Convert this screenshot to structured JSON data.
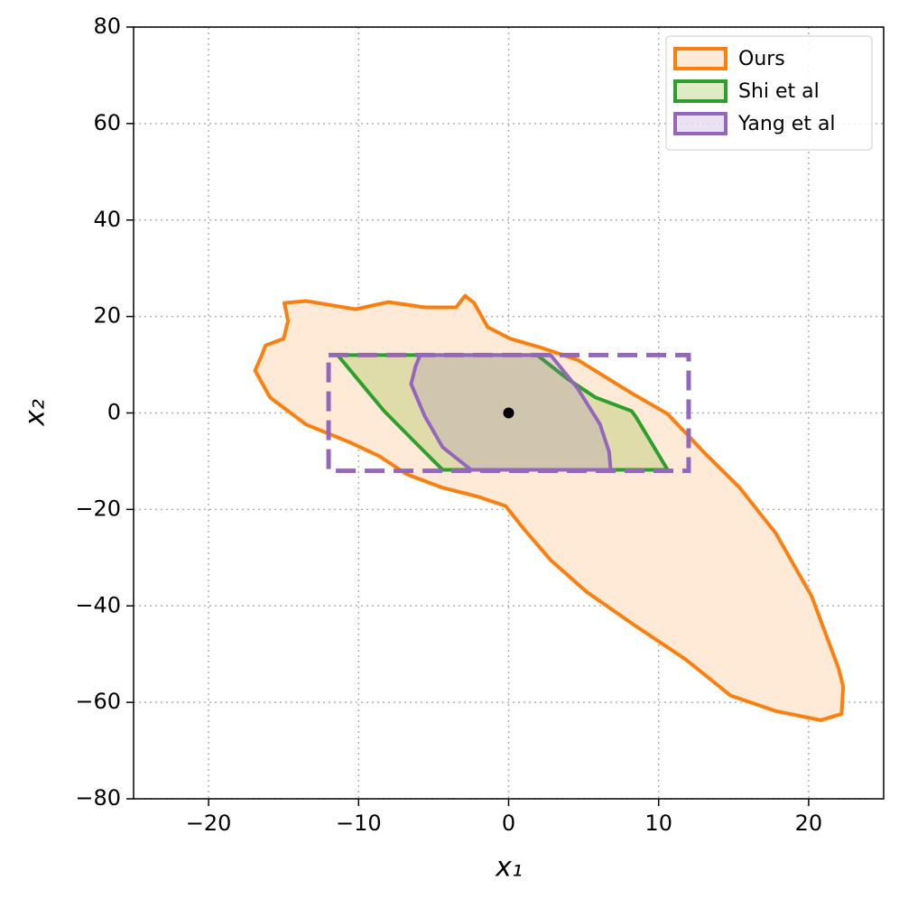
{
  "chart_data": {
    "type": "region",
    "xlabel": "x₁",
    "ylabel": "x₂",
    "xlim": [
      -25,
      25
    ],
    "ylim": [
      -80,
      80
    ],
    "xticks": [
      {
        "value": -20,
        "label": "−20"
      },
      {
        "value": -10,
        "label": "−10"
      },
      0,
      10,
      20
    ],
    "yticks": [
      {
        "value": -80,
        "label": "−80"
      },
      {
        "value": -60,
        "label": "−60"
      },
      {
        "value": -40,
        "label": "−40"
      },
      {
        "value": -20,
        "label": "−20"
      },
      0,
      20,
      40,
      60,
      80
    ],
    "grid": true,
    "legend": "upper right",
    "series": [
      {
        "name": "Ours",
        "color": "#ff7f0e",
        "fill": "#ffead8",
        "x": [
          -14.95,
          -13.5,
          -10.2,
          -8.0,
          -5.6,
          -3.5,
          -2.9,
          -2.3,
          -1.4,
          0.1,
          2.2,
          4.6,
          8.2,
          10.6,
          13.0,
          15.4,
          17.8,
          20.2,
          22.0,
          22.3,
          22.2,
          20.8,
          17.8,
          14.8,
          11.8,
          8.2,
          5.2,
          2.8,
          1.0,
          -0.2,
          -2.0,
          -4.4,
          -6.8,
          -8.6,
          -10.5,
          -13.5,
          -15.9,
          -16.9,
          -16.5,
          -16.2,
          -15.0,
          -14.7
        ],
        "y": [
          22.8,
          23.2,
          21.5,
          23.0,
          21.9,
          21.9,
          24.3,
          22.8,
          17.8,
          15.4,
          13.5,
          11.0,
          4.1,
          -0.2,
          -8.1,
          -15.5,
          -24.9,
          -38.0,
          -53.0,
          -56.7,
          -62.4,
          -63.7,
          -61.8,
          -58.6,
          -51.1,
          -43.6,
          -37.1,
          -30.5,
          -24.0,
          -19.3,
          -17.4,
          -15.5,
          -12.7,
          -9.0,
          -6.2,
          -2.4,
          3.2,
          8.8,
          11.6,
          14.0,
          15.4,
          19.1
        ]
      },
      {
        "name": "Shi et al",
        "color": "#2ca02c",
        "fill": "rgba(150,190,60,0.3)",
        "x": [
          -11.4,
          1.9,
          4.0,
          5.8,
          8.2,
          8.5,
          10.6,
          -4.4,
          -6.2,
          -8.3,
          -9.8
        ],
        "y": [
          12,
          12,
          6.9,
          3.2,
          0.4,
          -0.9,
          -11.8,
          -11.8,
          -6.2,
          0.4,
          6.0
        ]
      },
      {
        "name": "Yang et al",
        "color": "#9467bd",
        "fill": "rgba(148,103,189,0.2)",
        "x": [
          -5.9,
          2.8,
          4.6,
          6.1,
          6.7,
          6.8,
          -2.5,
          -4.4,
          -5.6,
          -6.5,
          -6.2
        ],
        "y": [
          12,
          12,
          5.1,
          -2.4,
          -8.1,
          -11.8,
          -11.8,
          -7.1,
          -0.6,
          6.0,
          9.7
        ]
      }
    ],
    "box": {
      "color": "#9467bd",
      "x": [
        -12,
        12
      ],
      "y": [
        -12,
        12
      ]
    },
    "point": {
      "color": "#000000",
      "x": 0,
      "y": 0
    }
  }
}
